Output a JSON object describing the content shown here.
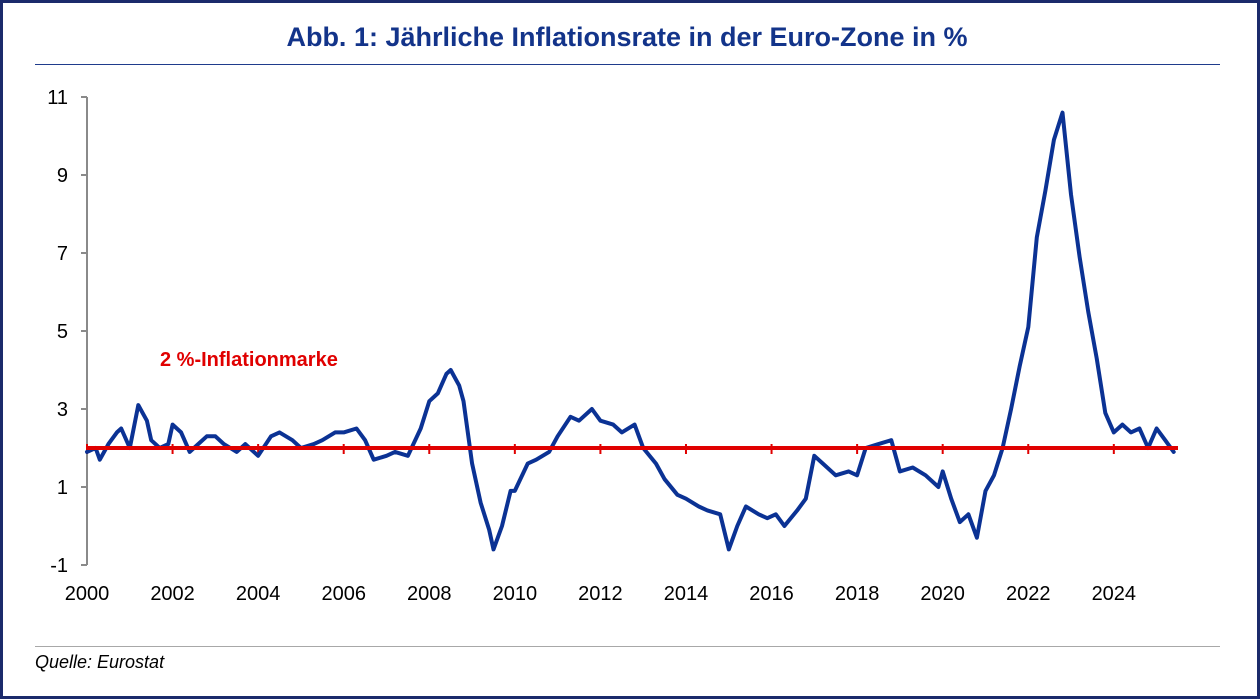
{
  "source_label": "Quelle: Eurostat",
  "colors": {
    "series": "#0b3294",
    "threshold": "#e00000",
    "title": "#13348a",
    "frame": "#1b2a6b"
  },
  "chart_data": {
    "type": "line",
    "title": "Abb. 1: Jährliche Inflationsrate in der Euro-Zone in %",
    "xlabel": "",
    "ylabel": "",
    "xlim": [
      2000,
      2025.5
    ],
    "ylim": [
      -1,
      11
    ],
    "y_ticks": [
      11,
      9,
      7,
      5,
      3,
      1,
      -1
    ],
    "x_ticks": [
      2000,
      2002,
      2004,
      2006,
      2008,
      2010,
      2012,
      2014,
      2016,
      2018,
      2020,
      2022,
      2024
    ],
    "threshold": {
      "value": 2,
      "label": "2 %-Inflationmarke"
    },
    "series": [
      {
        "name": "Jährliche Inflationsrate Euro-Zone",
        "x": [
          2000.0,
          2000.2,
          2000.3,
          2000.5,
          2000.7,
          2000.8,
          2001.0,
          2001.2,
          2001.4,
          2001.5,
          2001.7,
          2001.9,
          2002.0,
          2002.2,
          2002.4,
          2002.6,
          2002.8,
          2003.0,
          2003.2,
          2003.5,
          2003.7,
          2004.0,
          2004.3,
          2004.5,
          2004.8,
          2005.0,
          2005.3,
          2005.5,
          2005.8,
          2006.0,
          2006.3,
          2006.5,
          2006.7,
          2007.0,
          2007.2,
          2007.5,
          2007.8,
          2008.0,
          2008.2,
          2008.4,
          2008.5,
          2008.7,
          2008.8,
          2009.0,
          2009.2,
          2009.4,
          2009.5,
          2009.7,
          2009.9,
          2010.0,
          2010.3,
          2010.5,
          2010.8,
          2011.0,
          2011.3,
          2011.5,
          2011.8,
          2012.0,
          2012.3,
          2012.5,
          2012.8,
          2013.0,
          2013.3,
          2013.5,
          2013.8,
          2014.0,
          2014.3,
          2014.5,
          2014.8,
          2015.0,
          2015.2,
          2015.4,
          2015.7,
          2015.9,
          2016.1,
          2016.3,
          2016.6,
          2016.8,
          2017.0,
          2017.2,
          2017.5,
          2017.8,
          2018.0,
          2018.2,
          2018.5,
          2018.8,
          2019.0,
          2019.3,
          2019.6,
          2019.9,
          2020.0,
          2020.2,
          2020.4,
          2020.6,
          2020.8,
          2021.0,
          2021.2,
          2021.4,
          2021.6,
          2021.8,
          2022.0,
          2022.2,
          2022.4,
          2022.6,
          2022.8,
          2023.0,
          2023.2,
          2023.4,
          2023.6,
          2023.8,
          2024.0,
          2024.2,
          2024.4,
          2024.6,
          2024.8,
          2025.0,
          2025.2,
          2025.4
        ],
        "values": [
          1.9,
          2.0,
          1.7,
          2.1,
          2.4,
          2.5,
          2.0,
          3.1,
          2.7,
          2.2,
          2.0,
          2.1,
          2.6,
          2.4,
          1.9,
          2.1,
          2.3,
          2.3,
          2.1,
          1.9,
          2.1,
          1.8,
          2.3,
          2.4,
          2.2,
          2.0,
          2.1,
          2.2,
          2.4,
          2.4,
          2.5,
          2.2,
          1.7,
          1.8,
          1.9,
          1.8,
          2.5,
          3.2,
          3.4,
          3.9,
          4.0,
          3.6,
          3.2,
          1.6,
          0.6,
          -0.1,
          -0.6,
          0.0,
          0.9,
          0.9,
          1.6,
          1.7,
          1.9,
          2.3,
          2.8,
          2.7,
          3.0,
          2.7,
          2.6,
          2.4,
          2.6,
          2.0,
          1.6,
          1.2,
          0.8,
          0.7,
          0.5,
          0.4,
          0.3,
          -0.6,
          0.0,
          0.5,
          0.3,
          0.2,
          0.3,
          0.0,
          0.4,
          0.7,
          1.8,
          1.6,
          1.3,
          1.4,
          1.3,
          2.0,
          2.1,
          2.2,
          1.4,
          1.5,
          1.3,
          1.0,
          1.4,
          0.7,
          0.1,
          0.3,
          -0.3,
          0.9,
          1.3,
          2.0,
          3.0,
          4.1,
          5.1,
          7.4,
          8.6,
          9.9,
          10.6,
          8.5,
          6.9,
          5.5,
          4.3,
          2.9,
          2.4,
          2.6,
          2.4,
          2.5,
          2.0,
          2.5,
          2.2,
          1.9
        ]
      }
    ]
  }
}
